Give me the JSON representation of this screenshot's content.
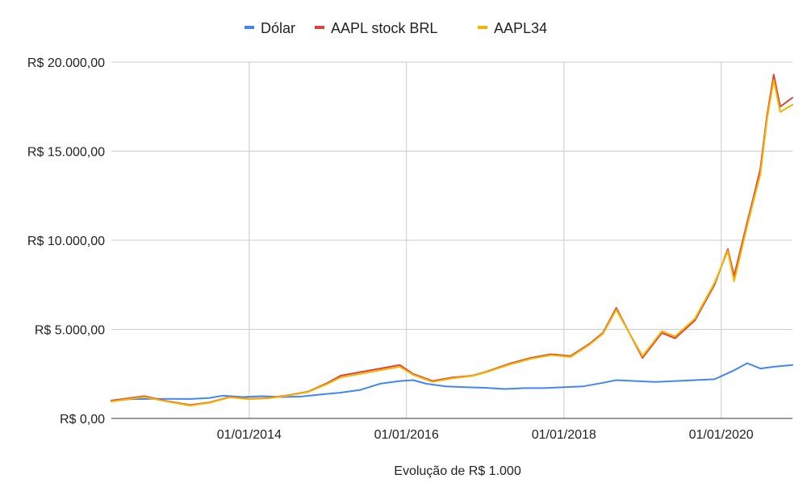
{
  "chart_data": {
    "type": "line",
    "title": "",
    "xlabel": "Evolução de R$ 1.000",
    "ylabel": "",
    "legend_position": "top",
    "grid": true,
    "x_range": [
      "2012-04-01",
      "2020-11-27"
    ],
    "ylim": [
      0,
      20000
    ],
    "y_ticks": [
      {
        "value": 0,
        "label": "R$ 0,00"
      },
      {
        "value": 5000,
        "label": "R$ 5.000,00"
      },
      {
        "value": 10000,
        "label": "R$ 10.000,00"
      },
      {
        "value": 15000,
        "label": "R$ 15.000,00"
      },
      {
        "value": 20000,
        "label": "R$ 20.000,00"
      }
    ],
    "x_ticks": [
      {
        "date": "2014-01-01",
        "label": "01/01/2014"
      },
      {
        "date": "2016-01-01",
        "label": "01/01/2016"
      },
      {
        "date": "2018-01-01",
        "label": "01/01/2018"
      },
      {
        "date": "2020-01-01",
        "label": "01/01/2020"
      }
    ],
    "series": [
      {
        "name": "Dólar",
        "color": "#4285f4",
        "points": [
          [
            "2012-04-01",
            1000
          ],
          [
            "2012-07-01",
            1080
          ],
          [
            "2012-10-01",
            1100
          ],
          [
            "2013-01-01",
            1100
          ],
          [
            "2013-04-01",
            1090
          ],
          [
            "2013-07-01",
            1150
          ],
          [
            "2013-09-01",
            1280
          ],
          [
            "2013-12-01",
            1200
          ],
          [
            "2014-03-01",
            1250
          ],
          [
            "2014-06-01",
            1200
          ],
          [
            "2014-09-01",
            1230
          ],
          [
            "2014-12-01",
            1350
          ],
          [
            "2015-03-01",
            1450
          ],
          [
            "2015-06-01",
            1600
          ],
          [
            "2015-09-01",
            1950
          ],
          [
            "2015-12-01",
            2100
          ],
          [
            "2016-02-01",
            2150
          ],
          [
            "2016-04-01",
            1950
          ],
          [
            "2016-07-01",
            1800
          ],
          [
            "2016-10-01",
            1750
          ],
          [
            "2017-01-01",
            1720
          ],
          [
            "2017-04-01",
            1650
          ],
          [
            "2017-07-01",
            1700
          ],
          [
            "2017-10-01",
            1700
          ],
          [
            "2018-01-01",
            1750
          ],
          [
            "2018-04-01",
            1800
          ],
          [
            "2018-07-01",
            2000
          ],
          [
            "2018-09-01",
            2150
          ],
          [
            "2018-12-01",
            2100
          ],
          [
            "2019-03-01",
            2050
          ],
          [
            "2019-06-01",
            2100
          ],
          [
            "2019-09-01",
            2150
          ],
          [
            "2019-12-01",
            2200
          ],
          [
            "2020-03-01",
            2700
          ],
          [
            "2020-05-01",
            3100
          ],
          [
            "2020-07-01",
            2800
          ],
          [
            "2020-09-01",
            2900
          ],
          [
            "2020-11-27",
            3000
          ]
        ]
      },
      {
        "name": "AAPL stock BRL",
        "color": "#db4437",
        "points": [
          [
            "2012-04-01",
            1000
          ],
          [
            "2012-09-01",
            1250
          ],
          [
            "2012-12-01",
            1000
          ],
          [
            "2013-04-01",
            750
          ],
          [
            "2013-07-01",
            900
          ],
          [
            "2013-10-01",
            1200
          ],
          [
            "2014-01-01",
            1100
          ],
          [
            "2014-04-01",
            1150
          ],
          [
            "2014-07-01",
            1300
          ],
          [
            "2014-10-01",
            1500
          ],
          [
            "2015-01-01",
            2000
          ],
          [
            "2015-03-01",
            2400
          ],
          [
            "2015-06-01",
            2600
          ],
          [
            "2015-09-01",
            2800
          ],
          [
            "2015-12-01",
            3000
          ],
          [
            "2016-02-01",
            2500
          ],
          [
            "2016-05-01",
            2100
          ],
          [
            "2016-08-01",
            2300
          ],
          [
            "2016-11-01",
            2400
          ],
          [
            "2017-01-01",
            2600
          ],
          [
            "2017-05-01",
            3100
          ],
          [
            "2017-08-01",
            3400
          ],
          [
            "2017-11-01",
            3600
          ],
          [
            "2018-02-01",
            3500
          ],
          [
            "2018-05-01",
            4200
          ],
          [
            "2018-07-01",
            4800
          ],
          [
            "2018-09-01",
            6200
          ],
          [
            "2018-10-01",
            5500
          ],
          [
            "2019-01-01",
            3400
          ],
          [
            "2019-04-01",
            4800
          ],
          [
            "2019-06-01",
            4500
          ],
          [
            "2019-09-01",
            5500
          ],
          [
            "2019-12-01",
            7500
          ],
          [
            "2020-02-01",
            9500
          ],
          [
            "2020-03-01",
            8000
          ],
          [
            "2020-05-01",
            11000
          ],
          [
            "2020-06-01",
            12500
          ],
          [
            "2020-07-01",
            14000
          ],
          [
            "2020-08-01",
            17000
          ],
          [
            "2020-09-01",
            19300
          ],
          [
            "2020-10-01",
            17500
          ],
          [
            "2020-11-27",
            18000
          ]
        ]
      },
      {
        "name": "AAPL34",
        "color": "#f4b400",
        "points": [
          [
            "2012-04-01",
            950
          ],
          [
            "2012-09-01",
            1200
          ],
          [
            "2012-12-01",
            980
          ],
          [
            "2013-04-01",
            720
          ],
          [
            "2013-07-01",
            880
          ],
          [
            "2013-10-01",
            1180
          ],
          [
            "2014-01-01",
            1080
          ],
          [
            "2014-04-01",
            1130
          ],
          [
            "2014-07-01",
            1280
          ],
          [
            "2014-10-01",
            1480
          ],
          [
            "2015-01-01",
            1950
          ],
          [
            "2015-03-01",
            2300
          ],
          [
            "2015-06-01",
            2500
          ],
          [
            "2015-09-01",
            2700
          ],
          [
            "2015-12-01",
            2900
          ],
          [
            "2016-02-01",
            2450
          ],
          [
            "2016-05-01",
            2050
          ],
          [
            "2016-08-01",
            2250
          ],
          [
            "2016-11-01",
            2380
          ],
          [
            "2017-01-01",
            2580
          ],
          [
            "2017-05-01",
            3050
          ],
          [
            "2017-08-01",
            3350
          ],
          [
            "2017-11-01",
            3550
          ],
          [
            "2018-02-01",
            3450
          ],
          [
            "2018-05-01",
            4150
          ],
          [
            "2018-07-01",
            4750
          ],
          [
            "2018-09-01",
            6100
          ],
          [
            "2018-10-01",
            5450
          ],
          [
            "2019-01-01",
            3500
          ],
          [
            "2019-04-01",
            4900
          ],
          [
            "2019-06-01",
            4600
          ],
          [
            "2019-09-01",
            5600
          ],
          [
            "2019-12-01",
            7600
          ],
          [
            "2020-02-01",
            9400
          ],
          [
            "2020-03-01",
            7700
          ],
          [
            "2020-05-01",
            10800
          ],
          [
            "2020-06-01",
            12300
          ],
          [
            "2020-07-01",
            13700
          ],
          [
            "2020-08-01",
            16800
          ],
          [
            "2020-09-01",
            19000
          ],
          [
            "2020-10-01",
            17200
          ],
          [
            "2020-11-27",
            17600
          ]
        ]
      }
    ]
  }
}
